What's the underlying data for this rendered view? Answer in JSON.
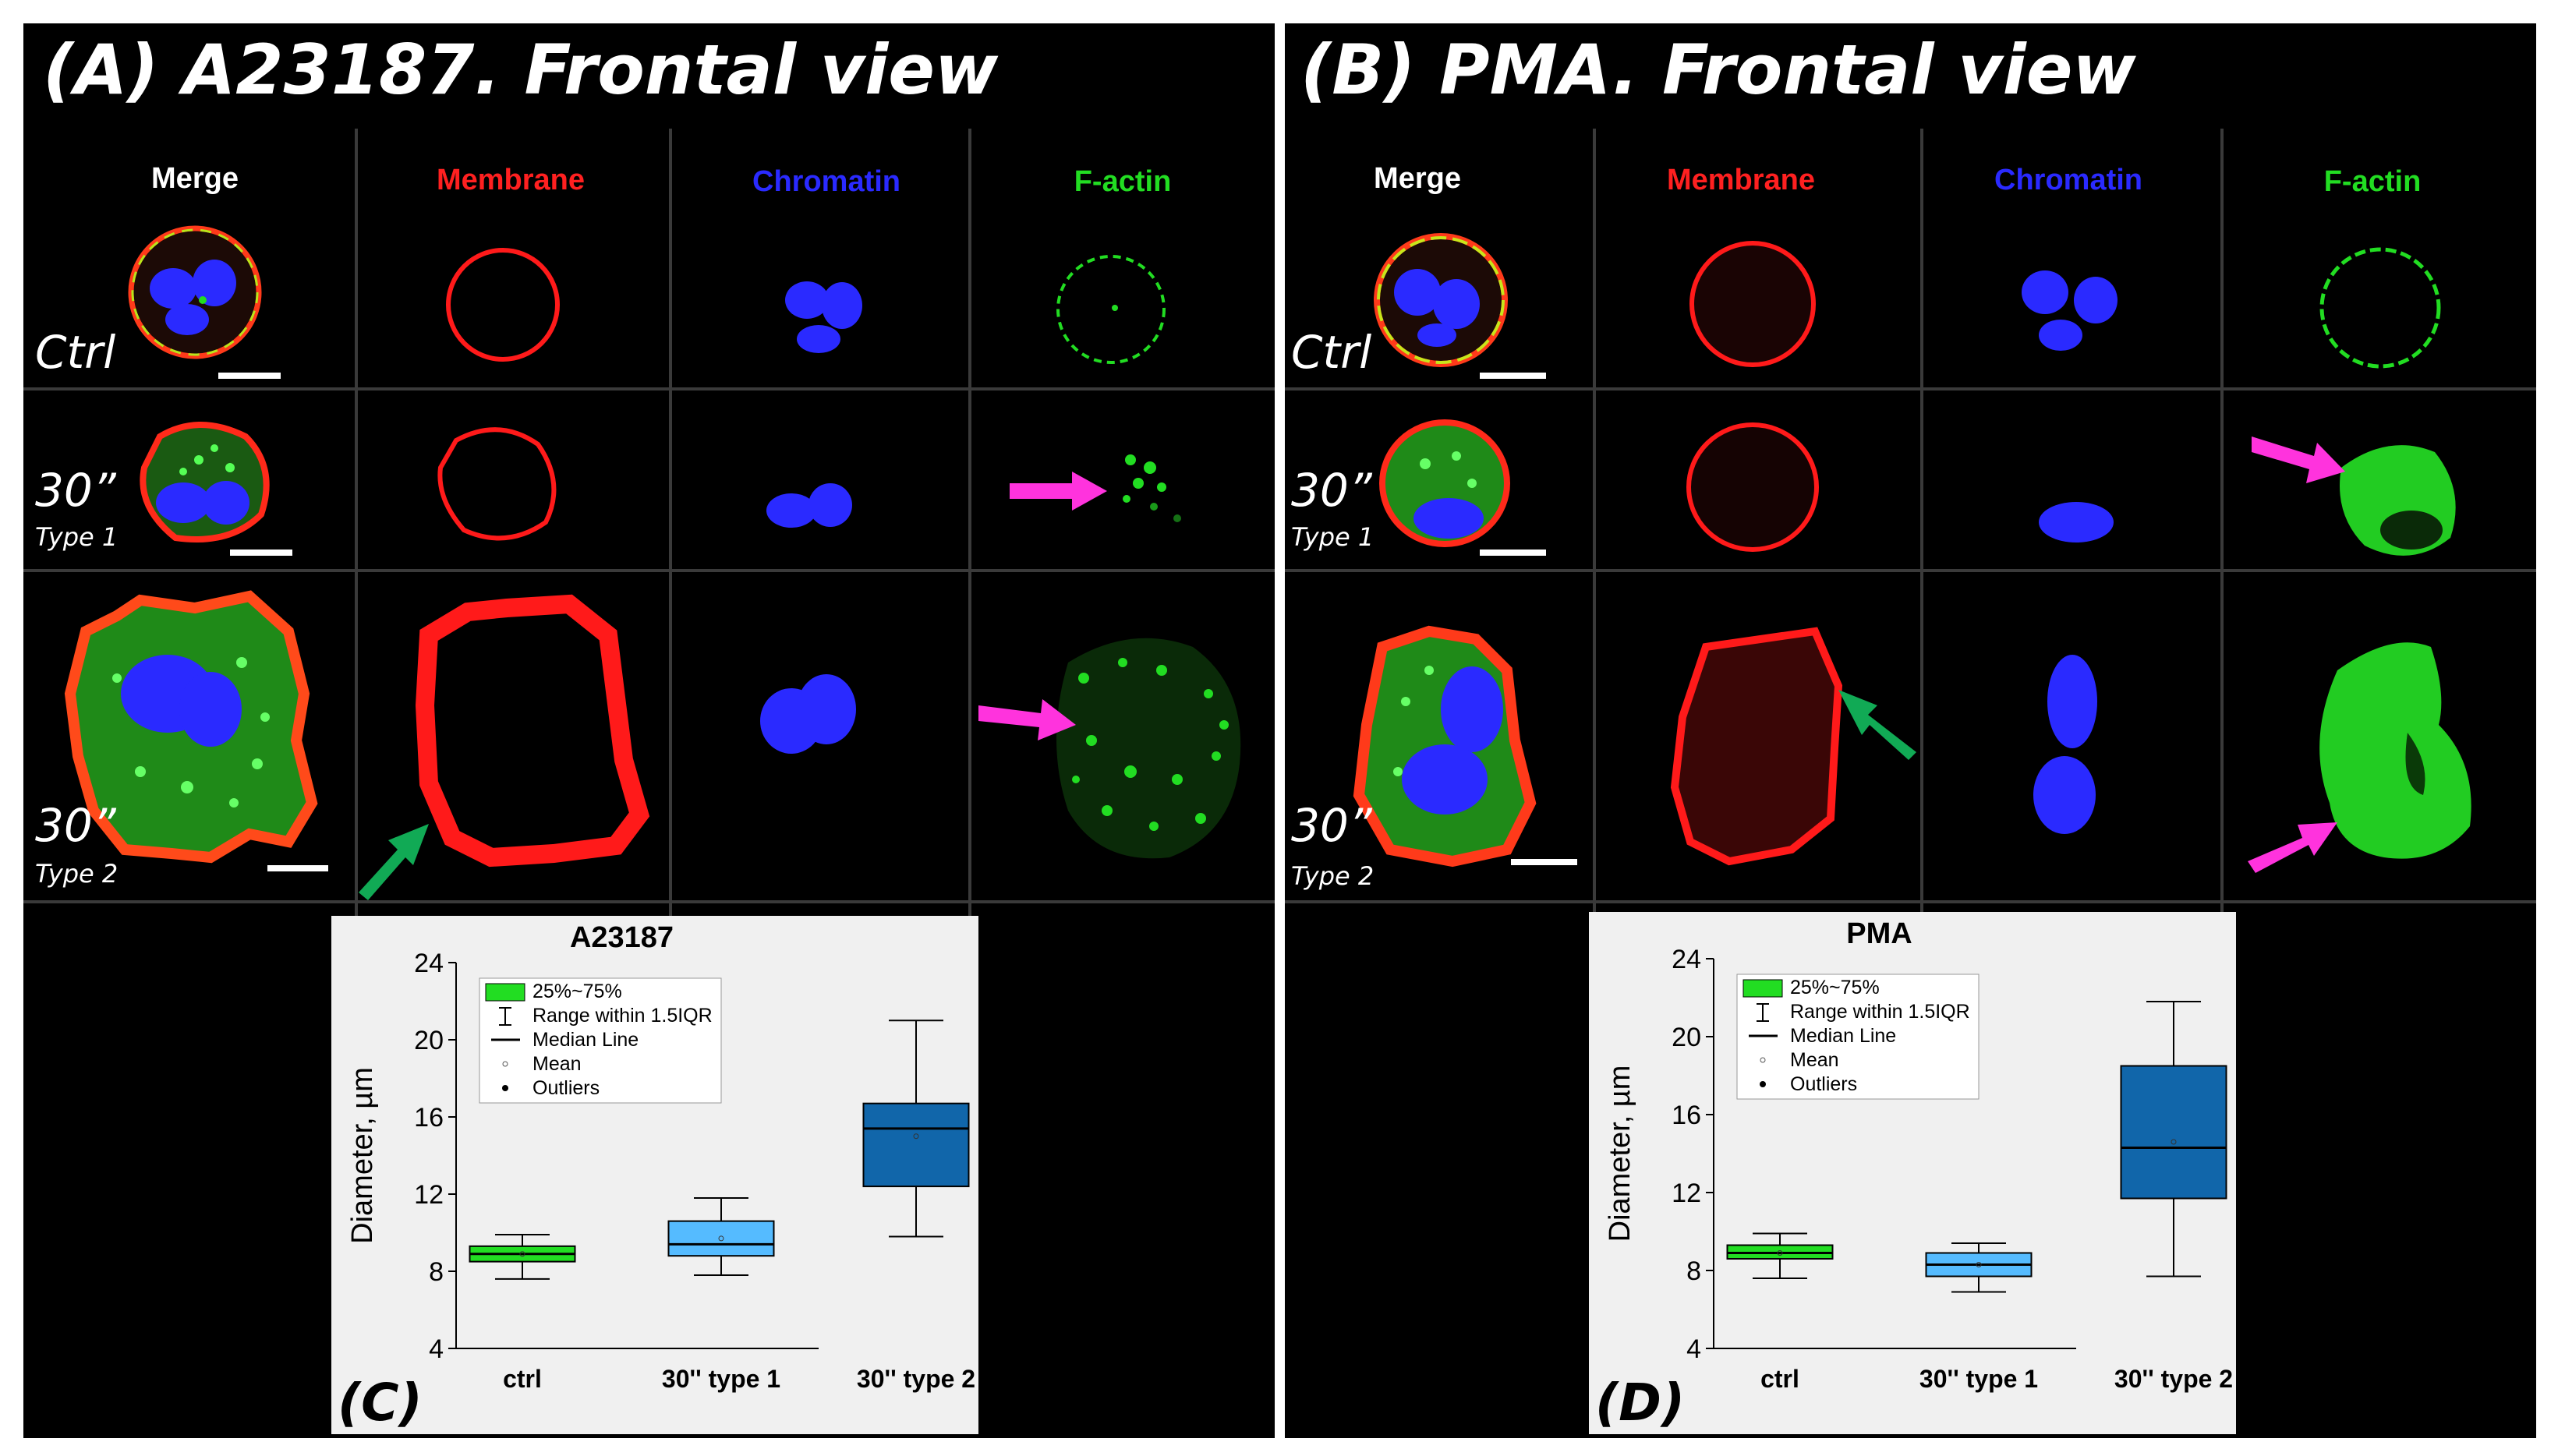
{
  "panels": {
    "A": {
      "title": "(A) A23187. Frontal view",
      "columns": [
        "Merge",
        "Membrane",
        "Chromatin",
        "F-actin"
      ],
      "rows": [
        {
          "label": "Ctrl",
          "sublabel": ""
        },
        {
          "label": "30”",
          "sublabel": "Type 1"
        },
        {
          "label": "30”",
          "sublabel": "Type 2"
        }
      ]
    },
    "B": {
      "title": "(B) PMA. Frontal view",
      "columns": [
        "Merge",
        "Membrane",
        "Chromatin",
        "F-actin"
      ],
      "rows": [
        {
          "label": "Ctrl",
          "sublabel": ""
        },
        {
          "label": "30”",
          "sublabel": "Type 1"
        },
        {
          "label": "30”",
          "sublabel": "Type 2"
        }
      ]
    }
  },
  "colors": {
    "merge": "#ffffff",
    "membrane": "#ff1a1a",
    "chromatin": "#2a2aff",
    "factin": "#22dd22",
    "arrow_magenta": "#ff33dd",
    "arrow_green": "#11aa55",
    "box_ctrl": "#22dd22",
    "box_type1": "#55bbff",
    "box_type2": "#1166aa"
  },
  "chart_data": [
    {
      "type": "box",
      "panel_label": "(C)",
      "title": "A23187",
      "xlabel": "",
      "ylabel": "Diameter, µm",
      "ylim": [
        4,
        24
      ],
      "yticks": [
        4,
        8,
        12,
        16,
        20,
        24
      ],
      "categories": [
        "ctrl",
        "30'' type 1",
        "30'' type 2"
      ],
      "boxes": [
        {
          "category": "ctrl",
          "whisker_low": 7.6,
          "q1": 8.5,
          "median": 8.9,
          "mean": 8.9,
          "q3": 9.3,
          "whisker_high": 9.9
        },
        {
          "category": "30'' type 1",
          "whisker_low": 7.8,
          "q1": 8.8,
          "median": 9.4,
          "mean": 9.7,
          "q3": 10.6,
          "whisker_high": 11.8
        },
        {
          "category": "30'' type 2",
          "whisker_low": 9.8,
          "q1": 12.4,
          "median": 15.4,
          "mean": 15.0,
          "q3": 16.7,
          "whisker_high": 21.0
        }
      ],
      "legend": [
        "25%~75%",
        "Range within 1.5IQR",
        "Median Line",
        "Mean",
        "Outliers"
      ],
      "legend_position": "top-left"
    },
    {
      "type": "box",
      "panel_label": "(D)",
      "title": "PMA",
      "xlabel": "",
      "ylabel": "Diameter, µm",
      "ylim": [
        4,
        24
      ],
      "yticks": [
        4,
        8,
        12,
        16,
        20,
        24
      ],
      "categories": [
        "ctrl",
        "30'' type 1",
        "30'' type 2"
      ],
      "boxes": [
        {
          "category": "ctrl",
          "whisker_low": 7.6,
          "q1": 8.6,
          "median": 8.9,
          "mean": 8.9,
          "q3": 9.3,
          "whisker_high": 9.9
        },
        {
          "category": "30'' type 1",
          "whisker_low": 6.9,
          "q1": 7.7,
          "median": 8.3,
          "mean": 8.3,
          "q3": 8.9,
          "whisker_high": 9.4
        },
        {
          "category": "30'' type 2",
          "whisker_low": 7.7,
          "q1": 11.7,
          "median": 14.3,
          "mean": 14.6,
          "q3": 18.5,
          "whisker_high": 21.8
        }
      ],
      "legend": [
        "25%~75%",
        "Range within 1.5IQR",
        "Median Line",
        "Mean",
        "Outliers"
      ],
      "legend_position": "top-left"
    }
  ]
}
